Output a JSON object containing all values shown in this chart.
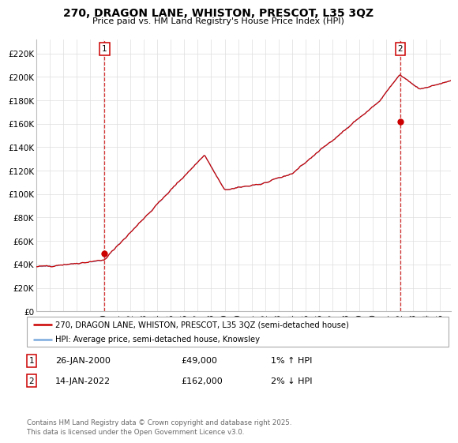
{
  "title": "270, DRAGON LANE, WHISTON, PRESCOT, L35 3QZ",
  "subtitle": "Price paid vs. HM Land Registry's House Price Index (HPI)",
  "ylabel_ticks": [
    "£0",
    "£20K",
    "£40K",
    "£60K",
    "£80K",
    "£100K",
    "£120K",
    "£140K",
    "£160K",
    "£180K",
    "£200K",
    "£220K"
  ],
  "ytick_vals": [
    0,
    20000,
    40000,
    60000,
    80000,
    100000,
    120000,
    140000,
    160000,
    180000,
    200000,
    220000
  ],
  "ylim": [
    0,
    232000
  ],
  "xlim_start": 1995.0,
  "xlim_end": 2025.8,
  "purchase1_x": 2000.07,
  "purchase1_y": 49000,
  "purchase2_x": 2022.04,
  "purchase2_y": 162000,
  "line_color": "#cc0000",
  "hpi_color": "#7aaadd",
  "grid_color": "#dddddd",
  "legend_line1": "270, DRAGON LANE, WHISTON, PRESCOT, L35 3QZ (semi-detached house)",
  "legend_line2": "HPI: Average price, semi-detached house, Knowsley",
  "table_row1": [
    "1",
    "26-JAN-2000",
    "£49,000",
    "1% ↑ HPI"
  ],
  "table_row2": [
    "2",
    "14-JAN-2022",
    "£162,000",
    "2% ↓ HPI"
  ],
  "footer": "Contains HM Land Registry data © Crown copyright and database right 2025.\nThis data is licensed under the Open Government Licence v3.0.",
  "xtick_years": [
    1995,
    1996,
    1997,
    1998,
    1999,
    2000,
    2001,
    2002,
    2003,
    2004,
    2005,
    2006,
    2007,
    2008,
    2009,
    2010,
    2011,
    2012,
    2013,
    2014,
    2015,
    2016,
    2017,
    2018,
    2019,
    2020,
    2021,
    2022,
    2023,
    2024,
    2025
  ]
}
